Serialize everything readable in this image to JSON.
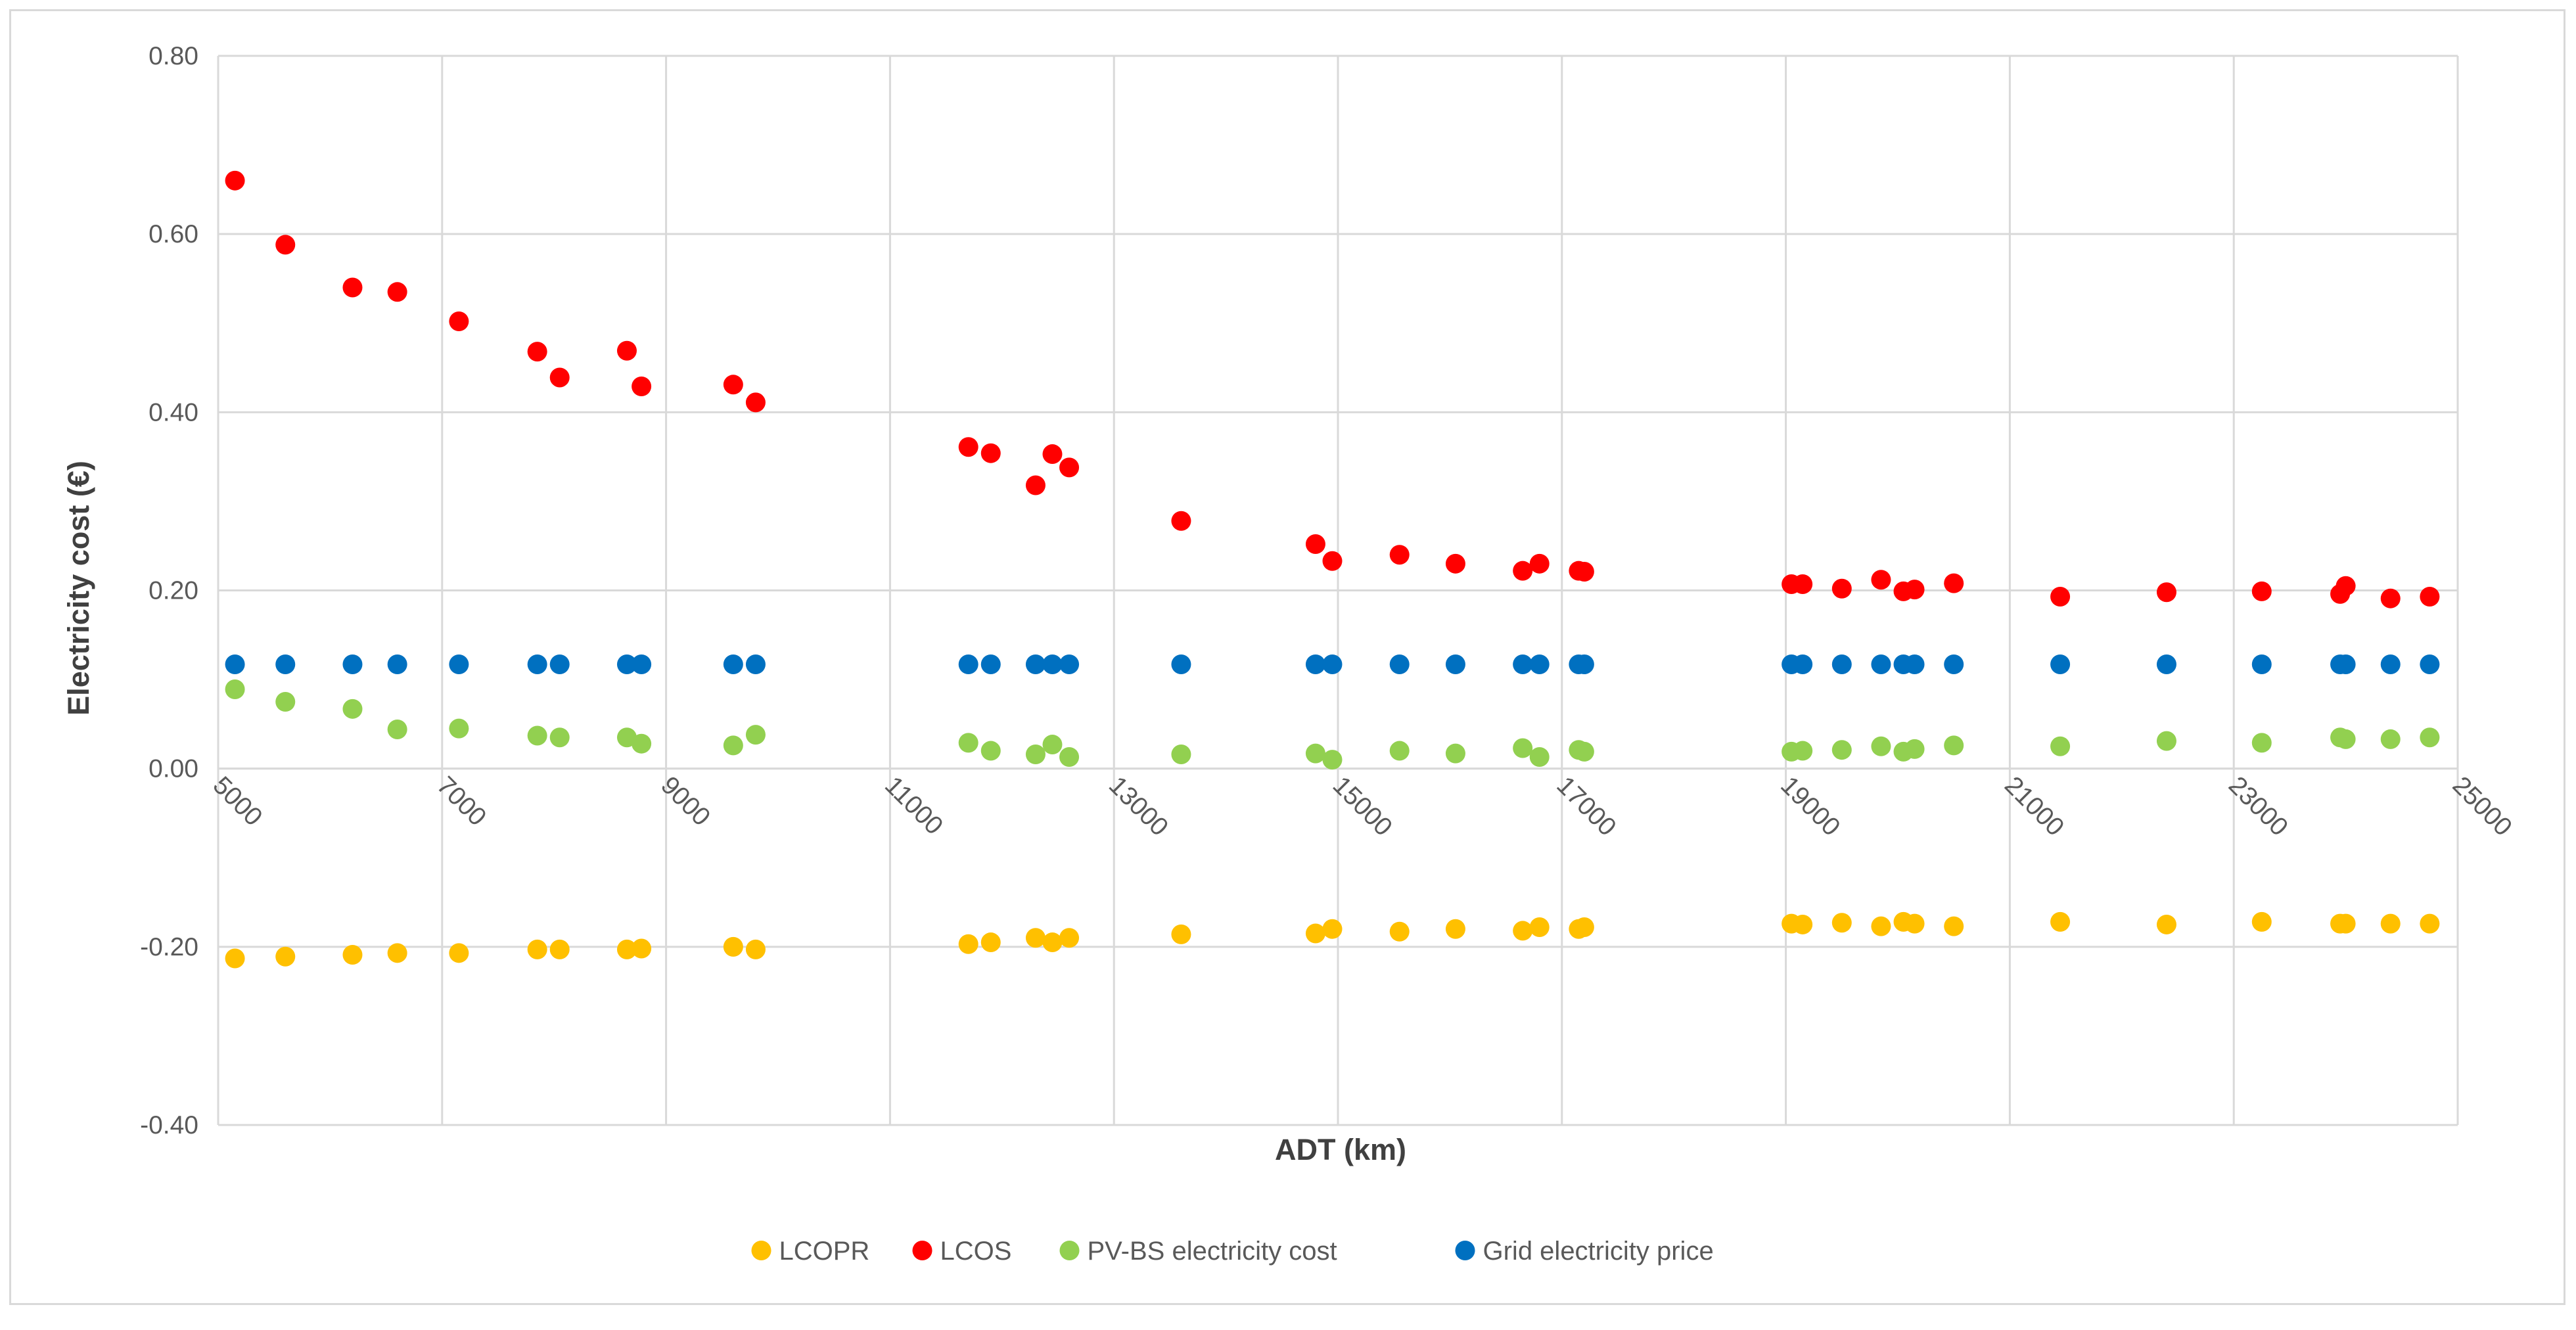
{
  "chart_data": {
    "type": "scatter",
    "title": "",
    "xlabel": "ADT (km)",
    "ylabel": "Electricity cost (€)",
    "xlim": [
      5000,
      25000
    ],
    "ylim": [
      -0.4,
      0.8
    ],
    "x_ticks": [
      5000,
      7000,
      9000,
      11000,
      13000,
      15000,
      17000,
      19000,
      21000,
      23000,
      25000
    ],
    "x_tick_labels": [
      "5000",
      "7000",
      "9000",
      "11000",
      "13000",
      "15000",
      "17000",
      "19000",
      "21000",
      "23000",
      "25000"
    ],
    "y_ticks": [
      -0.4,
      -0.2,
      0.0,
      0.2,
      0.4,
      0.6,
      0.8
    ],
    "y_tick_labels": [
      "-0.40",
      "-0.20",
      "0.00",
      "0.20",
      "0.40",
      "0.60",
      "0.80"
    ],
    "grid": true,
    "legend_position": "bottom",
    "x": [
      5150,
      5600,
      6200,
      6600,
      7150,
      7850,
      8050,
      8650,
      8780,
      9600,
      9800,
      11700,
      11900,
      12300,
      12450,
      12600,
      13600,
      14800,
      14950,
      15550,
      16050,
      16650,
      16800,
      17150,
      17200,
      19050,
      19150,
      19500,
      19850,
      20050,
      20150,
      20500,
      21450,
      22400,
      23250,
      23950,
      24000,
      24400,
      24750
    ],
    "series": [
      {
        "name": "LCOPR",
        "color": "#ffc000",
        "values": [
          -0.213,
          -0.211,
          -0.209,
          -0.207,
          -0.207,
          -0.203,
          -0.203,
          -0.203,
          -0.202,
          -0.2,
          -0.203,
          -0.197,
          -0.195,
          -0.19,
          -0.195,
          -0.19,
          -0.186,
          -0.185,
          -0.18,
          -0.183,
          -0.18,
          -0.182,
          -0.178,
          -0.18,
          -0.178,
          -0.174,
          -0.175,
          -0.173,
          -0.177,
          -0.172,
          -0.174,
          -0.177,
          -0.172,
          -0.175,
          -0.172,
          -0.174,
          -0.174,
          -0.174,
          -0.174
        ]
      },
      {
        "name": "LCOS",
        "color": "#ff0000",
        "values": [
          0.66,
          0.588,
          0.54,
          0.535,
          0.502,
          0.468,
          0.439,
          0.469,
          0.429,
          0.431,
          0.411,
          0.361,
          0.354,
          0.318,
          0.353,
          0.338,
          0.278,
          0.252,
          0.233,
          0.24,
          0.23,
          0.222,
          0.23,
          0.222,
          0.221,
          0.207,
          0.207,
          0.202,
          0.212,
          0.199,
          0.201,
          0.208,
          0.193,
          0.198,
          0.199,
          0.196,
          0.205,
          0.191,
          0.193
        ]
      },
      {
        "name": "PV-BS electricity cost",
        "color": "#92d050",
        "values": [
          0.089,
          0.075,
          0.067,
          0.044,
          0.045,
          0.037,
          0.035,
          0.035,
          0.028,
          0.026,
          0.038,
          0.029,
          0.02,
          0.016,
          0.027,
          0.013,
          0.016,
          0.017,
          0.01,
          0.02,
          0.017,
          0.023,
          0.013,
          0.021,
          0.019,
          0.019,
          0.02,
          0.021,
          0.025,
          0.019,
          0.022,
          0.026,
          0.025,
          0.031,
          0.029,
          0.035,
          0.033,
          0.033,
          0.035
        ]
      },
      {
        "name": "Grid electricity price",
        "color": "#0070c0",
        "values": [
          0.117,
          0.117,
          0.117,
          0.117,
          0.117,
          0.117,
          0.117,
          0.117,
          0.117,
          0.117,
          0.117,
          0.117,
          0.117,
          0.117,
          0.117,
          0.117,
          0.117,
          0.117,
          0.117,
          0.117,
          0.117,
          0.117,
          0.117,
          0.117,
          0.117,
          0.117,
          0.117,
          0.117,
          0.117,
          0.117,
          0.117,
          0.117,
          0.117,
          0.117,
          0.117,
          0.117,
          0.117,
          0.117,
          0.117
        ]
      }
    ]
  }
}
